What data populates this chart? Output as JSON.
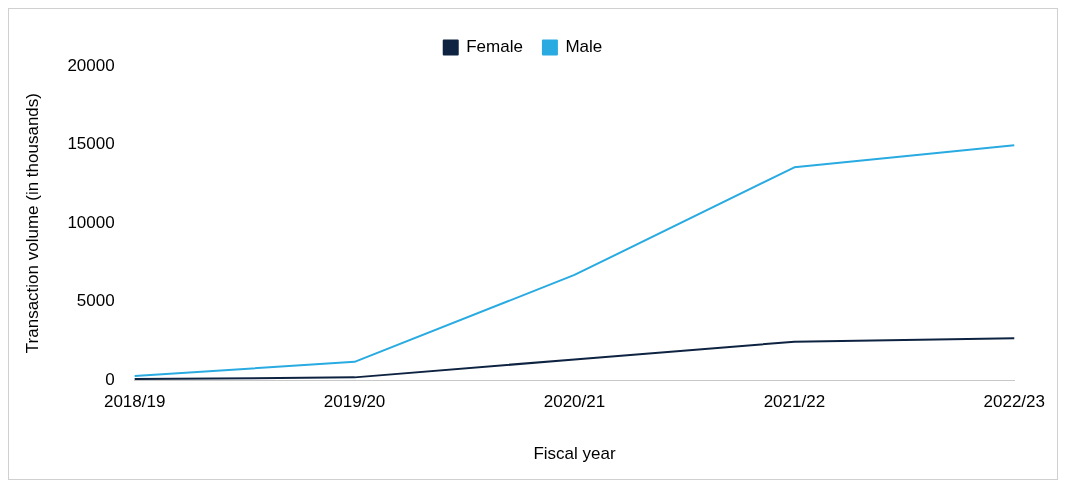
{
  "chart_data": {
    "type": "line",
    "xlabel": "Fiscal year",
    "ylabel": "Transaction volume (in thousands)",
    "categories": [
      "2018/19",
      "2019/20",
      "2020/21",
      "2021/22",
      "2022/23"
    ],
    "series": [
      {
        "name": "Female",
        "color": "#0e2341",
        "values": [
          70,
          180,
          1320,
          2450,
          2670
        ]
      },
      {
        "name": "Male",
        "color": "#29abe2",
        "values": [
          260,
          1170,
          6700,
          13550,
          14950
        ]
      }
    ],
    "ylim": [
      0,
      20000
    ],
    "yticks": [
      0,
      5000,
      10000,
      15000,
      20000
    ],
    "grid": false,
    "legend": "top",
    "marker": "none"
  }
}
